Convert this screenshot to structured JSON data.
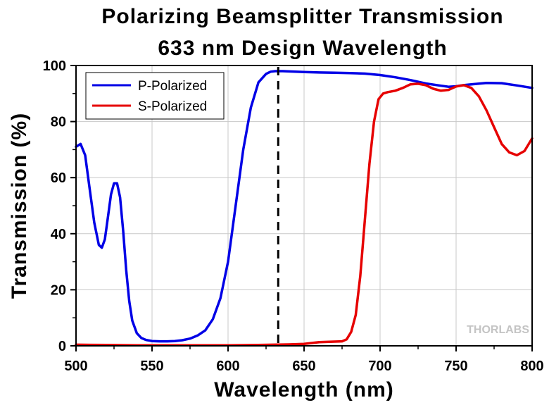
{
  "chart_data": {
    "type": "line",
    "title": "Polarizing Beamsplitter Transmission",
    "subtitle": "633 nm Design Wavelength",
    "xlabel": "Wavelength (nm)",
    "ylabel": "Transmission (%)",
    "xlim": [
      500,
      800
    ],
    "ylim": [
      0,
      100
    ],
    "xticks": [
      500,
      550,
      600,
      650,
      700,
      750,
      800
    ],
    "yticks": [
      0,
      20,
      40,
      60,
      80,
      100
    ],
    "grid": true,
    "legend_position": "top-left",
    "reference_line": {
      "x": 633,
      "style": "dashed",
      "color": "#000000"
    },
    "watermark": "THORLABS",
    "series": [
      {
        "name": "P-Polarized",
        "color": "#0000e6",
        "x": [
          500,
          503,
          506,
          509,
          512,
          515,
          517,
          519,
          521,
          523,
          525,
          527,
          529,
          531,
          533,
          535,
          537,
          540,
          543,
          546,
          550,
          555,
          560,
          565,
          570,
          575,
          580,
          585,
          590,
          595,
          600,
          605,
          610,
          615,
          620,
          625,
          628,
          631,
          633,
          636,
          640,
          650,
          660,
          670,
          680,
          690,
          700,
          710,
          720,
          730,
          740,
          745,
          750,
          755,
          760,
          770,
          780,
          790,
          800
        ],
        "y": [
          71,
          72,
          68,
          56,
          44,
          36,
          35,
          38,
          46,
          54,
          58,
          58,
          53,
          41,
          27,
          16,
          9,
          4.5,
          2.8,
          2.1,
          1.7,
          1.6,
          1.6,
          1.7,
          2.0,
          2.6,
          3.7,
          5.5,
          9.5,
          17,
          30,
          50,
          70,
          85,
          94,
          97,
          97.8,
          98,
          98,
          98,
          97.9,
          97.7,
          97.5,
          97.4,
          97.3,
          97.1,
          96.6,
          95.8,
          94.8,
          93.6,
          92.8,
          92.4,
          92.6,
          93,
          93.3,
          93.8,
          93.7,
          92.9,
          92
        ]
      },
      {
        "name": "S-Polarized",
        "color": "#e60000",
        "x": [
          500,
          520,
          540,
          560,
          580,
          600,
          620,
          640,
          650,
          655,
          660,
          665,
          670,
          675,
          678,
          681,
          684,
          687,
          690,
          693,
          696,
          699,
          702,
          705,
          710,
          715,
          720,
          725,
          730,
          735,
          740,
          745,
          750,
          755,
          760,
          765,
          770,
          775,
          780,
          785,
          790,
          795,
          800
        ],
        "y": [
          0.4,
          0.3,
          0.2,
          0.2,
          0.2,
          0.2,
          0.3,
          0.5,
          0.7,
          1.0,
          1.3,
          1.4,
          1.5,
          1.6,
          2.3,
          5,
          11,
          25,
          45,
          65,
          80,
          88,
          90,
          90.5,
          91,
          92,
          93.3,
          93.5,
          93,
          91.7,
          91,
          91.3,
          92.5,
          93,
          92,
          89,
          84,
          78,
          72,
          69,
          68,
          69.5,
          74
        ]
      }
    ]
  }
}
